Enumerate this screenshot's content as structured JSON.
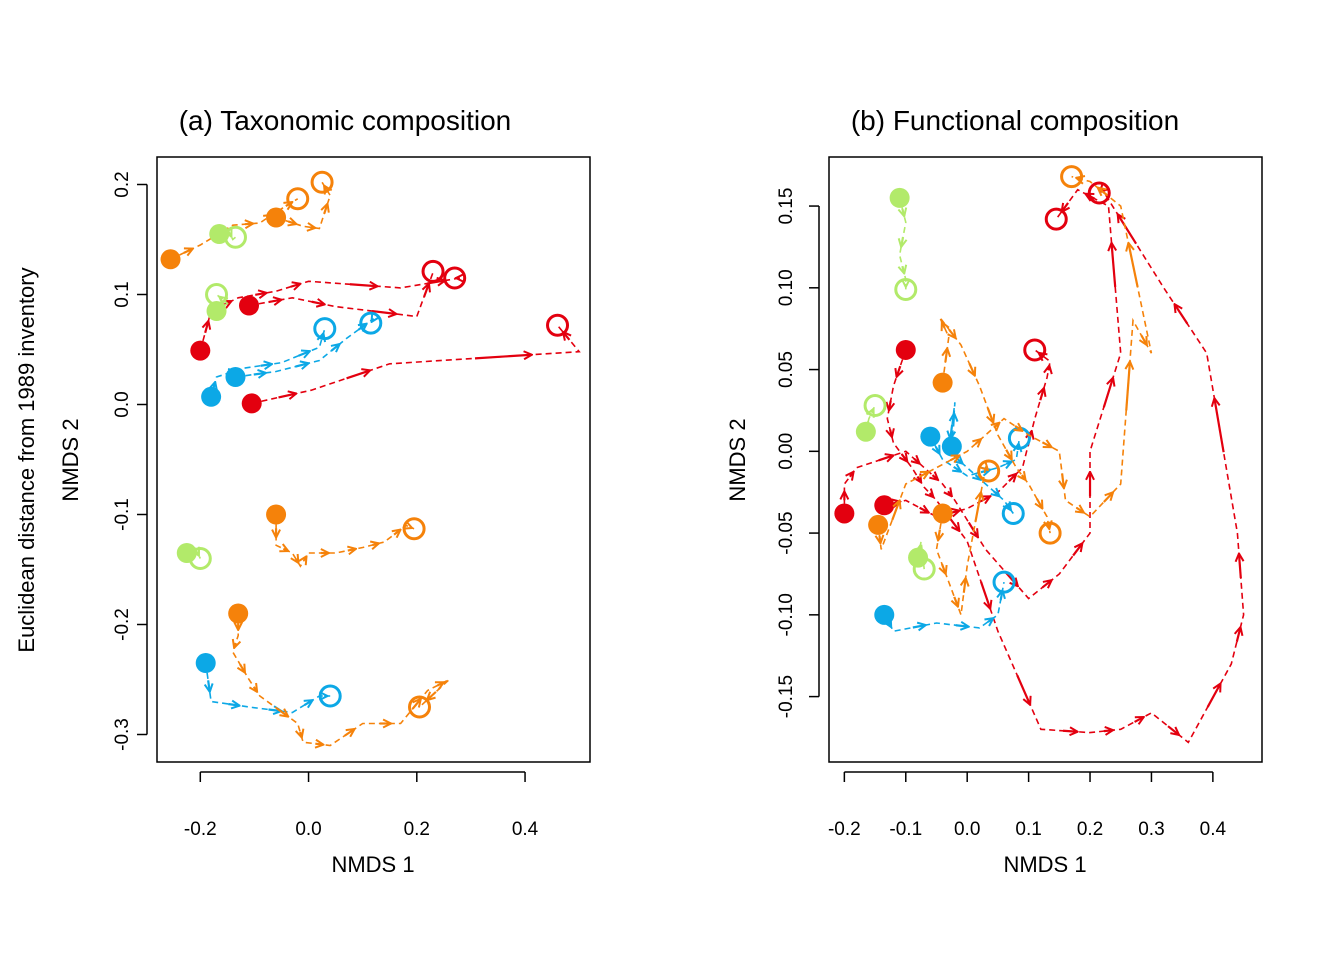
{
  "figure": {
    "shared_ylabel": "Euclidean distance from 1989 inventory",
    "colors": {
      "red": "#e3000f",
      "orange": "#f5820a",
      "blue": "#0ca8e6",
      "green": "#b2ea6a"
    }
  },
  "chart_data": [
    {
      "type": "scatter",
      "title": "(a) Taxonomic composition",
      "xlabel": "NMDS 1",
      "ylabel": "NMDS 2",
      "xlim": [
        -0.28,
        0.52
      ],
      "ylim": [
        -0.325,
        0.225
      ],
      "xticks": [
        "-0.2",
        "0.0",
        "0.2",
        "0.4"
      ],
      "xtick_values": [
        -0.2,
        0.0,
        0.2,
        0.4
      ],
      "yticks": [
        "-0.3",
        "-0.2",
        "-0.1",
        "0.0",
        "0.1",
        "0.2"
      ],
      "ytick_values": [
        -0.3,
        -0.2,
        -0.1,
        0.0,
        0.1,
        0.2
      ],
      "trajectories": [
        {
          "color": "red",
          "points": [
            [
              -0.105,
              0.001
            ],
            [
              0.005,
              0.013
            ],
            [
              0.15,
              0.037
            ],
            [
              0.5,
              0.048
            ],
            [
              0.46,
              0.072
            ]
          ]
        },
        {
          "color": "red",
          "points": [
            [
              -0.2,
              0.049
            ],
            [
              -0.18,
              0.085
            ],
            [
              -0.13,
              0.097
            ],
            [
              -0.06,
              0.103
            ],
            [
              0.0,
              0.112
            ],
            [
              0.17,
              0.106
            ],
            [
              0.28,
              0.115
            ],
            [
              0.27,
              0.115
            ]
          ]
        },
        {
          "color": "red",
          "points": [
            [
              -0.11,
              0.09
            ],
            [
              -0.03,
              0.097
            ],
            [
              0.05,
              0.089
            ],
            [
              0.2,
              0.08
            ],
            [
              0.23,
              0.12
            ],
            [
              0.23,
              0.121
            ]
          ]
        },
        {
          "color": "blue",
          "points": [
            [
              -0.18,
              0.007
            ],
            [
              -0.17,
              0.025
            ],
            [
              -0.12,
              0.033
            ],
            [
              -0.05,
              0.038
            ],
            [
              0.02,
              0.052
            ],
            [
              0.03,
              0.069
            ]
          ]
        },
        {
          "color": "blue",
          "points": [
            [
              -0.135,
              0.025
            ],
            [
              -0.06,
              0.03
            ],
            [
              0.02,
              0.04
            ],
            [
              0.07,
              0.06
            ],
            [
              0.12,
              0.078
            ],
            [
              0.115,
              0.074
            ]
          ]
        },
        {
          "color": "blue",
          "points": [
            [
              -0.19,
              -0.235
            ],
            [
              -0.18,
              -0.27
            ],
            [
              -0.11,
              -0.275
            ],
            [
              -0.03,
              -0.28
            ],
            [
              0.02,
              -0.265
            ],
            [
              0.04,
              -0.265
            ]
          ]
        },
        {
          "color": "orange",
          "points": [
            [
              -0.255,
              0.132
            ],
            [
              -0.2,
              0.145
            ],
            [
              -0.14,
              0.163
            ],
            [
              -0.09,
              0.165
            ],
            [
              -0.06,
              0.175
            ],
            [
              -0.02,
              0.187
            ]
          ]
        },
        {
          "color": "orange",
          "points": [
            [
              -0.06,
              0.17
            ],
            [
              -0.01,
              0.162
            ],
            [
              0.02,
              0.16
            ],
            [
              0.04,
              0.19
            ],
            [
              0.025,
              0.202
            ]
          ]
        },
        {
          "color": "orange",
          "points": [
            [
              -0.06,
              -0.1
            ],
            [
              -0.06,
              -0.128
            ],
            [
              -0.03,
              -0.135
            ],
            [
              -0.015,
              -0.147
            ],
            [
              0.0,
              -0.135
            ],
            [
              0.05,
              -0.135
            ],
            [
              0.1,
              -0.13
            ],
            [
              0.14,
              -0.125
            ],
            [
              0.18,
              -0.11
            ],
            [
              0.195,
              -0.113
            ]
          ]
        },
        {
          "color": "orange",
          "points": [
            [
              -0.13,
              -0.19
            ],
            [
              -0.13,
              -0.21
            ],
            [
              -0.14,
              -0.225
            ],
            [
              -0.11,
              -0.25
            ],
            [
              -0.09,
              -0.265
            ],
            [
              -0.02,
              -0.29
            ],
            [
              -0.01,
              -0.307
            ],
            [
              0.04,
              -0.31
            ],
            [
              0.1,
              -0.29
            ],
            [
              0.17,
              -0.29
            ],
            [
              0.22,
              -0.26
            ],
            [
              0.26,
              -0.25
            ],
            [
              0.205,
              -0.275
            ]
          ]
        },
        {
          "color": "green",
          "points": [
            [
              -0.165,
              0.155
            ],
            [
              -0.15,
              0.16
            ],
            [
              -0.14,
              0.15
            ],
            [
              -0.135,
              0.152
            ]
          ]
        },
        {
          "color": "green",
          "points": [
            [
              -0.17,
              0.085
            ],
            [
              -0.15,
              0.092
            ],
            [
              -0.17,
              0.1
            ]
          ]
        },
        {
          "color": "green",
          "points": [
            [
              -0.225,
              -0.135
            ],
            [
              -0.21,
              -0.13
            ],
            [
              -0.2,
              -0.14
            ]
          ]
        }
      ]
    },
    {
      "type": "scatter",
      "title": "(b) Functional composition",
      "xlabel": "NMDS 1",
      "ylabel": "NMDS 2",
      "xlim": [
        -0.225,
        0.48
      ],
      "ylim": [
        -0.19,
        0.18
      ],
      "xticks": [
        "-0.2",
        "-0.1",
        "0.0",
        "0.1",
        "0.2",
        "0.3",
        "0.4"
      ],
      "xtick_values": [
        -0.2,
        -0.1,
        0.0,
        0.1,
        0.2,
        0.3,
        0.4
      ],
      "yticks": [
        "-0.15",
        "-0.10",
        "-0.05",
        "0.00",
        "0.05",
        "0.10",
        "0.15"
      ],
      "ytick_values": [
        -0.15,
        -0.1,
        -0.05,
        0.0,
        0.05,
        0.1,
        0.15
      ],
      "trajectories": [
        {
          "color": "red",
          "points": [
            [
              -0.1,
              0.062
            ],
            [
              -0.12,
              0.04
            ],
            [
              -0.13,
              0.02
            ],
            [
              -0.12,
              0.005
            ],
            [
              -0.09,
              -0.01
            ],
            [
              -0.07,
              -0.022
            ],
            [
              -0.05,
              -0.03
            ],
            [
              0.0,
              -0.055
            ],
            [
              0.05,
              -0.11
            ],
            [
              0.12,
              -0.17
            ],
            [
              0.2,
              -0.172
            ],
            [
              0.25,
              -0.17
            ],
            [
              0.3,
              -0.16
            ],
            [
              0.36,
              -0.178
            ],
            [
              0.43,
              -0.13
            ],
            [
              0.45,
              -0.1
            ],
            [
              0.44,
              -0.05
            ],
            [
              0.39,
              0.06
            ],
            [
              0.32,
              0.1
            ],
            [
              0.22,
              0.16
            ],
            [
              0.215,
              0.158
            ]
          ]
        },
        {
          "color": "red",
          "points": [
            [
              -0.2,
              -0.038
            ],
            [
              -0.2,
              -0.02
            ],
            [
              -0.18,
              -0.01
            ],
            [
              -0.1,
              0.0
            ],
            [
              -0.07,
              -0.01
            ],
            [
              -0.04,
              -0.02
            ],
            [
              -0.02,
              -0.03
            ],
            [
              0.03,
              -0.06
            ],
            [
              0.1,
              -0.09
            ],
            [
              0.15,
              -0.075
            ],
            [
              0.2,
              -0.05
            ],
            [
              0.2,
              0.0
            ],
            [
              0.25,
              0.06
            ],
            [
              0.23,
              0.15
            ],
            [
              0.18,
              0.16
            ],
            [
              0.145,
              0.142
            ]
          ]
        },
        {
          "color": "red",
          "points": [
            [
              -0.135,
              -0.033
            ],
            [
              -0.1,
              -0.03
            ],
            [
              -0.05,
              -0.04
            ],
            [
              0.0,
              -0.035
            ],
            [
              0.05,
              -0.025
            ],
            [
              0.09,
              -0.01
            ],
            [
              0.11,
              0.02
            ],
            [
              0.13,
              0.045
            ],
            [
              0.135,
              0.055
            ],
            [
              0.11,
              0.062
            ]
          ]
        },
        {
          "color": "blue",
          "points": [
            [
              -0.135,
              -0.1
            ],
            [
              -0.12,
              -0.11
            ],
            [
              -0.05,
              -0.105
            ],
            [
              0.02,
              -0.108
            ],
            [
              0.05,
              -0.1
            ],
            [
              0.06,
              -0.08
            ]
          ]
        },
        {
          "color": "blue",
          "points": [
            [
              -0.06,
              0.009
            ],
            [
              -0.04,
              -0.005
            ],
            [
              0.0,
              -0.015
            ],
            [
              0.05,
              -0.01
            ],
            [
              0.08,
              -0.005
            ],
            [
              0.085,
              0.008
            ]
          ]
        },
        {
          "color": "blue",
          "points": [
            [
              -0.025,
              0.003
            ],
            [
              -0.02,
              0.03
            ],
            [
              -0.03,
              0.0
            ],
            [
              0.0,
              -0.01
            ],
            [
              0.03,
              -0.02
            ],
            [
              0.06,
              -0.03
            ],
            [
              0.075,
              -0.038
            ]
          ]
        },
        {
          "color": "orange",
          "points": [
            [
              -0.04,
              0.042
            ],
            [
              -0.03,
              0.07
            ],
            [
              -0.045,
              0.082
            ],
            [
              -0.01,
              0.065
            ],
            [
              0.02,
              0.04
            ],
            [
              0.05,
              0.01
            ],
            [
              0.08,
              -0.01
            ],
            [
              0.1,
              -0.02
            ],
            [
              0.13,
              -0.04
            ],
            [
              0.135,
              -0.05
            ]
          ]
        },
        {
          "color": "orange",
          "points": [
            [
              -0.04,
              -0.038
            ],
            [
              -0.05,
              -0.06
            ],
            [
              -0.03,
              -0.08
            ],
            [
              -0.01,
              -0.1
            ],
            [
              0.0,
              -0.07
            ],
            [
              0.03,
              -0.01
            ],
            [
              0.035,
              -0.012
            ]
          ]
        },
        {
          "color": "orange",
          "points": [
            [
              -0.145,
              -0.045
            ],
            [
              -0.14,
              -0.06
            ],
            [
              -0.1,
              -0.02
            ],
            [
              -0.05,
              -0.01
            ],
            [
              0.0,
              0.0
            ],
            [
              0.03,
              0.01
            ],
            [
              0.06,
              0.02
            ],
            [
              0.1,
              0.01
            ],
            [
              0.15,
              0.0
            ],
            [
              0.16,
              -0.03
            ],
            [
              0.2,
              -0.04
            ],
            [
              0.25,
              -0.02
            ],
            [
              0.27,
              0.08
            ],
            [
              0.3,
              0.06
            ],
            [
              0.25,
              0.15
            ],
            [
              0.2,
              0.165
            ],
            [
              0.17,
              0.168
            ]
          ]
        },
        {
          "color": "green",
          "points": [
            [
              -0.11,
              0.155
            ],
            [
              -0.1,
              0.14
            ],
            [
              -0.11,
              0.12
            ],
            [
              -0.1,
              0.105
            ],
            [
              -0.1,
              0.099
            ]
          ]
        },
        {
          "color": "green",
          "points": [
            [
              -0.165,
              0.012
            ],
            [
              -0.16,
              0.02
            ],
            [
              -0.15,
              0.028
            ]
          ]
        },
        {
          "color": "green",
          "points": [
            [
              -0.08,
              -0.065
            ],
            [
              -0.075,
              -0.055
            ],
            [
              -0.07,
              -0.072
            ]
          ]
        }
      ]
    }
  ]
}
